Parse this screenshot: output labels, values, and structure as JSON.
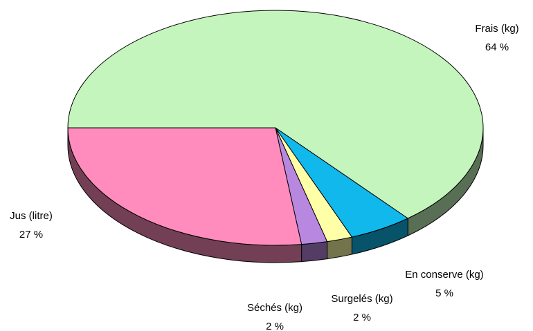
{
  "chart_data": {
    "type": "pie",
    "categories": [
      "Frais (kg)",
      "En conserve (kg)",
      "Surgelés (kg)",
      "Séchés (kg)",
      "Jus (litre)"
    ],
    "values": [
      64,
      5,
      2,
      2,
      27
    ],
    "value_labels": [
      "64 %",
      "5 %",
      "2 %",
      "2 %",
      "27 %"
    ],
    "colors": [
      "#c4f5bc",
      "#10b8ec",
      "#ffffa8",
      "#b888e0",
      "#ff8cbc"
    ]
  }
}
